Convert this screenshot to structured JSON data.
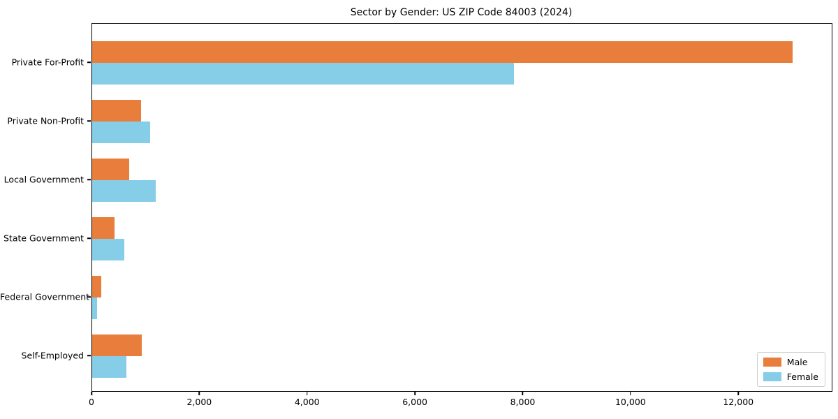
{
  "chart_data": {
    "type": "bar",
    "orientation": "horizontal",
    "title": "Sector by Gender: US ZIP Code 84003 (2024)",
    "categories": [
      "Private For-Profit",
      "Private Non-Profit",
      "Local Government",
      "State Government",
      "Federal Government",
      "Self-Employed"
    ],
    "series": [
      {
        "name": "Male",
        "color": "#e87d3c",
        "values": [
          13000,
          910,
          690,
          410,
          170,
          920
        ]
      },
      {
        "name": "Female",
        "color": "#86cde8",
        "values": [
          7820,
          1070,
          1180,
          600,
          95,
          635
        ]
      }
    ],
    "xlabel": "",
    "ylabel": "",
    "xlim": [
      0,
      13720
    ],
    "x_ticks": [
      0,
      2000,
      4000,
      6000,
      8000,
      10000,
      12000
    ],
    "x_tick_labels": [
      "0",
      "2,000",
      "4,000",
      "6,000",
      "8,000",
      "10,000",
      "12,000"
    ],
    "grid": false,
    "legend_position": "lower right",
    "spine_color": "#000000",
    "background_color": "#ffffff"
  }
}
